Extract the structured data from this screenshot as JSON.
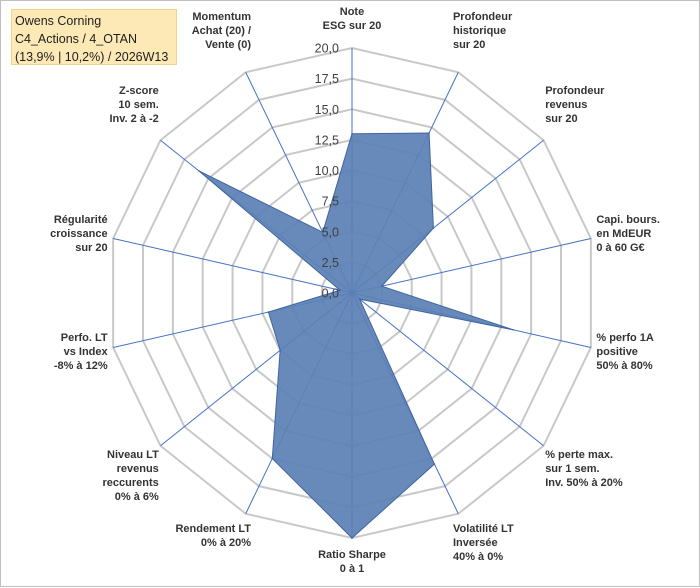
{
  "title": {
    "line1": "Owens Corning",
    "line2": "C4_Actions / 4_OTAN",
    "line3": "(13,9% | 10,2%) / 2026W13"
  },
  "chart_data": {
    "type": "radar",
    "r_min": 0,
    "r_max": 20,
    "r_step": 2.5,
    "tick_labels": [
      "0,0",
      "2,5",
      "5,0",
      "7,5",
      "10,0",
      "12,5",
      "15,0",
      "17,5",
      "20,0"
    ],
    "grid": true,
    "axes": [
      {
        "label": [
          "Note",
          "ESG sur 20"
        ],
        "value": 13
      },
      {
        "label": [
          "Profondeur",
          "historique",
          "sur 20"
        ],
        "value": 14.5
      },
      {
        "label": [
          "Profondeur",
          "revenus",
          "sur 20"
        ],
        "value": 8.5
      },
      {
        "label": [
          "Capi. bours.",
          "en MdEUR",
          "0 à 60 G€"
        ],
        "value": 2.5
      },
      {
        "label": [
          "% perfo 1A",
          "positive",
          "50% à 80%"
        ],
        "value": 13.5
      },
      {
        "label": [
          "% perte max.",
          "sur 1 sem.",
          "Inv. 50% à 20%"
        ],
        "value": 0.8
      },
      {
        "label": [
          "Volatilité LT",
          "Inversée",
          "40% à 0%"
        ],
        "value": 15.5
      },
      {
        "label": [
          "Ratio Sharpe",
          "0 à 1"
        ],
        "value": 20
      },
      {
        "label": [
          "Rendement LT",
          "0% à 20%"
        ],
        "value": 15
      },
      {
        "label": [
          "Niveau LT",
          "revenus",
          "reccurents",
          "0% à 6%"
        ],
        "value": 7.5
      },
      {
        "label": [
          "Perfo. LT",
          "vs Index",
          "-8% à 12%"
        ],
        "value": 7
      },
      {
        "label": [
          "Régularité",
          "croissance",
          "sur 20"
        ],
        "value": 1
      },
      {
        "label": [
          "Z-score",
          "10 sem.",
          "Inv. 2 à -2"
        ],
        "value": 16
      },
      {
        "label": [
          "Momentum",
          "Achat (20) /",
          "Vente (0)"
        ],
        "value": 5.5
      }
    ],
    "colors": {
      "fill": "#5b80b5",
      "stroke": "#3f64a0",
      "spoke": "#4472c4",
      "grid": "#c8c8c8"
    }
  }
}
